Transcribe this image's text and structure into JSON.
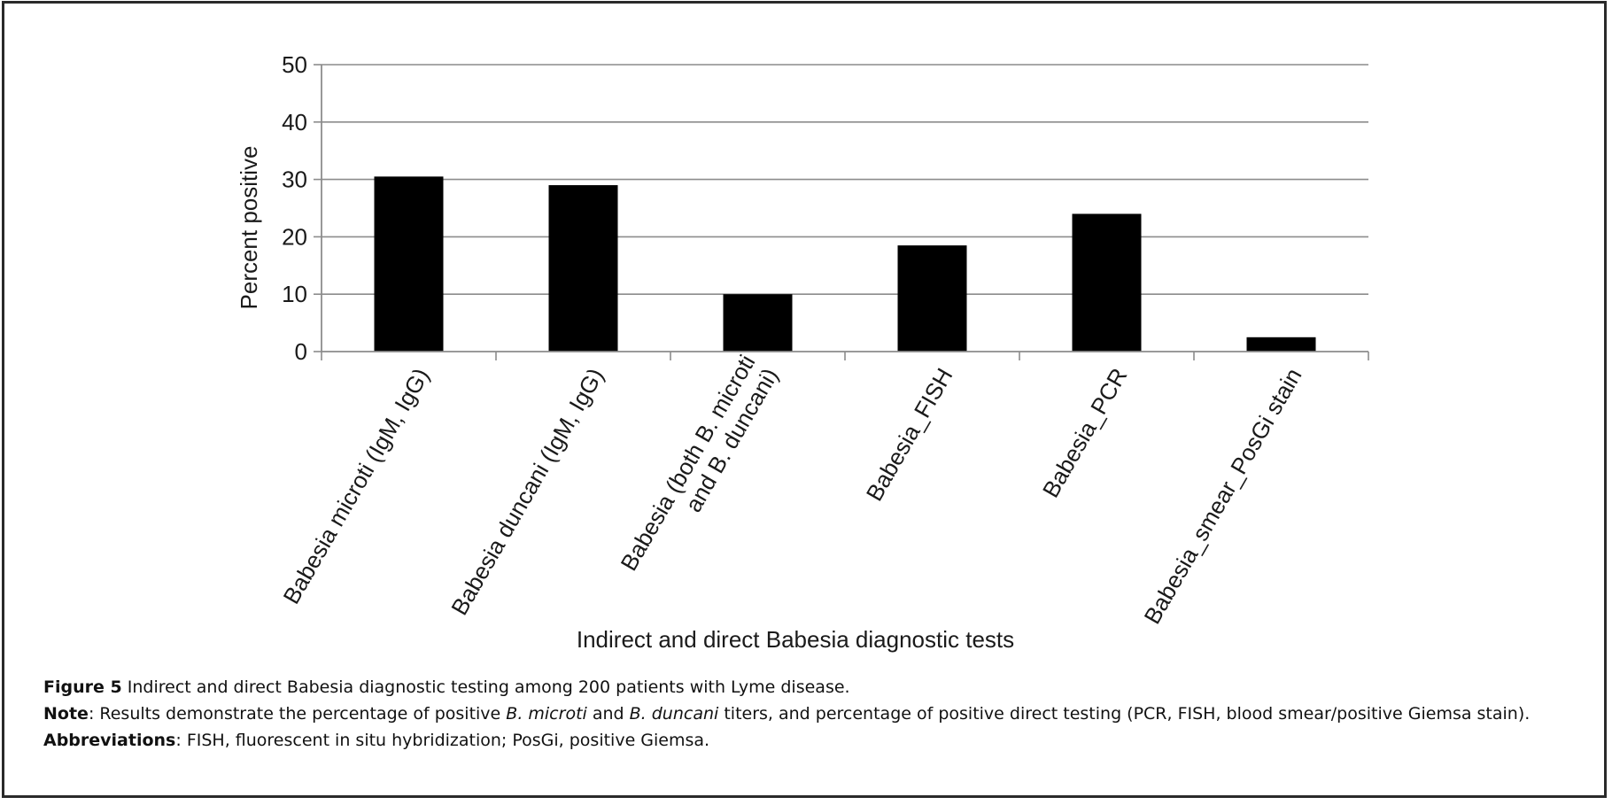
{
  "chart_data": {
    "type": "bar",
    "ylabel": "Percent positive",
    "xlabel": "Indirect and direct Babesia diagnostic tests",
    "ylim": [
      0,
      50
    ],
    "yticks": [
      0,
      10,
      20,
      30,
      40,
      50
    ],
    "grid": "horizontal",
    "bar_color": "#000000",
    "categories": [
      [
        "Babesia microti (IgM, IgG)"
      ],
      [
        "Babesia duncani (IgM, IgG)"
      ],
      [
        "Babesia (both B. microti",
        "and B. duncani)"
      ],
      [
        "Babesia_FISH"
      ],
      [
        "Babesia_PCR"
      ],
      [
        "Babesia_smear_PosGi stain"
      ]
    ],
    "values": [
      30.5,
      29,
      10,
      18.5,
      24,
      2.5
    ]
  },
  "caption": {
    "figure": {
      "lead": "Figure 5",
      "text": " Indirect and direct Babesia diagnostic testing among 200 patients with Lyme disease."
    },
    "note": {
      "lead": "Note",
      "p1": ": Results demonstrate the percentage of positive ",
      "i1": "B. microti",
      "p2": " and ",
      "i2": "B. duncani",
      "p3": " titers, and percentage of positive direct testing (PCR, FISH, blood smear/positive Giemsa stain)."
    },
    "abbreviations": {
      "lead": "Abbreviations",
      "text": ": FISH, fluorescent in situ hybridization; PosGi, positive Giemsa."
    }
  }
}
